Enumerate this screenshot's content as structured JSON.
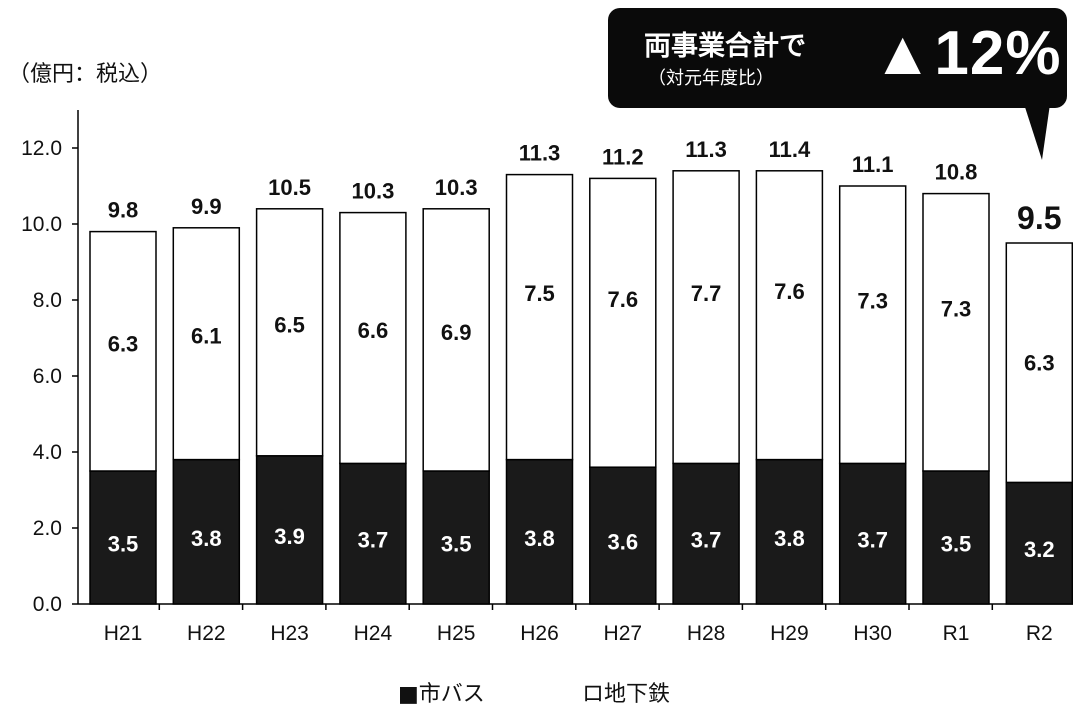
{
  "unit_label": "（億円：税込）",
  "callout": {
    "line1": "両事業合計で",
    "line2": "（対元年度比）",
    "figure": "▲12%"
  },
  "legend": {
    "bus": "■市バス",
    "subway": "ロ地下鉄"
  },
  "colors": {
    "bus": "#1a1a1a",
    "subway": "#ffffff",
    "callout_bg": "#0a0a0a"
  },
  "chart_data": {
    "type": "bar",
    "stacked": true,
    "categories": [
      "H21",
      "H22",
      "H23",
      "H24",
      "H25",
      "H26",
      "H27",
      "H28",
      "H29",
      "H30",
      "R1",
      "R2"
    ],
    "series": [
      {
        "name": "市バス",
        "values": [
          3.5,
          3.8,
          3.9,
          3.7,
          3.5,
          3.8,
          3.6,
          3.7,
          3.8,
          3.7,
          3.5,
          3.2
        ]
      },
      {
        "name": "地下鉄",
        "values": [
          6.3,
          6.1,
          6.5,
          6.6,
          6.9,
          7.5,
          7.6,
          7.7,
          7.6,
          7.3,
          7.3,
          6.3
        ]
      }
    ],
    "bus_labels": [
      "3.5",
      "3.8",
      "3.9",
      "3.7",
      "3.5",
      "3.8",
      "3.6",
      "3.7",
      "3.8",
      "3.7",
      "3.5",
      "3.2"
    ],
    "subway_labels": [
      "6.3",
      "6.1",
      "6.5",
      "6.6",
      "6.9",
      "7.5",
      "7.6",
      "7.7",
      "7.6",
      "7.3",
      "7.3",
      "6.3"
    ],
    "totals": [
      "9.8",
      "9.9",
      "10.5",
      "10.3",
      "10.3",
      "11.3",
      "11.2",
      "11.3",
      "11.4",
      "11.1",
      "10.8",
      "9.5"
    ],
    "yticks": [
      "0.0",
      "2.0",
      "4.0",
      "6.0",
      "8.0",
      "10.0",
      "12.0"
    ],
    "ylim": [
      0,
      13
    ],
    "grid": false,
    "legend_position": "bottom"
  }
}
